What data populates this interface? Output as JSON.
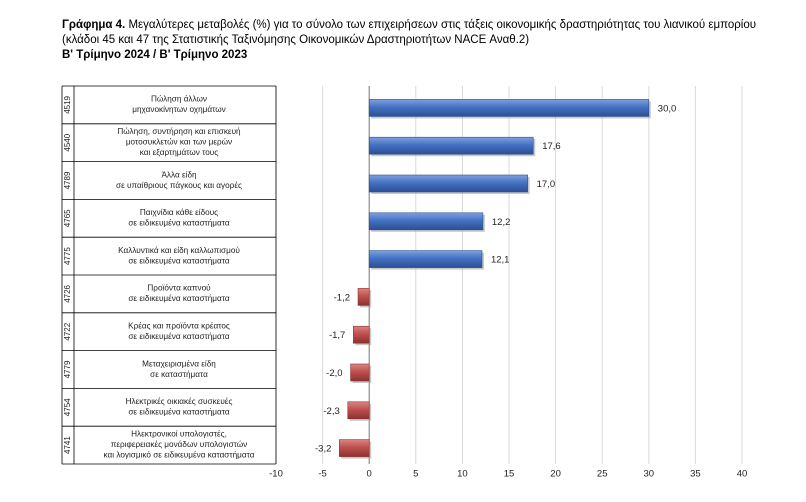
{
  "header": {
    "lead": "Γράφημα 4.",
    "title": " Μεγαλύτερες μεταβολές (%) για το σύνολο των επιχειρήσεων στις τάξεις οικονομικής δραστηριότητας του λιανικού εμπορίου (κλάδοι 45 και 47 της Στατιστικής Ταξινόμησης Οικονομικών Δραστηριοτήτων NACE Αναθ.2)",
    "period": "Β' Τρίμηνο 2024 / Β' Τρίμηνο 2023"
  },
  "colors": {
    "positive": "#4472c4",
    "negative": "#c0504d",
    "grid": "#d9d9d9",
    "axis": "#7f7f7f"
  },
  "chart_data": {
    "type": "bar",
    "orientation": "horizontal",
    "title": "Β' Τρίμηνο 2024 / Β' Τρίμηνο 2023",
    "xlim": [
      -10,
      40
    ],
    "xticks": [
      -10,
      -5,
      0,
      5,
      10,
      15,
      20,
      25,
      30,
      35,
      40
    ],
    "grid": true,
    "legend": "none",
    "categories": [
      {
        "code": "4519",
        "lines": [
          "Πώληση άλλων",
          "μηχανοκίνητων οχημάτων"
        ]
      },
      {
        "code": "4540",
        "lines": [
          "Πώληση, συντήρηση και επισκευή",
          "μοτοσυκλετών και των μερών",
          "και εξαρτημάτων τους"
        ]
      },
      {
        "code": "4789",
        "lines": [
          "Άλλα είδη",
          "σε υπαίθριους πάγκους και αγορές"
        ]
      },
      {
        "code": "4765",
        "lines": [
          "Παιχνίδια κάθε είδους",
          "σε ειδικευμένα καταστήματα"
        ]
      },
      {
        "code": "4775",
        "lines": [
          "Καλλυντικά και είδη καλλωπισμού",
          "σε ειδικευμένα καταστήματα"
        ]
      },
      {
        "code": "4726",
        "lines": [
          "Προϊόντα καπνού",
          "σε ειδικευμένα καταστήματα"
        ]
      },
      {
        "code": "4722",
        "lines": [
          "Κρέας και προϊόντα κρέατος",
          "σε ειδικευμένα καταστήματα"
        ]
      },
      {
        "code": "4779",
        "lines": [
          "Μεταχειρισμένα είδη",
          "σε καταστήματα"
        ]
      },
      {
        "code": "4754",
        "lines": [
          "Ηλεκτρικές οικιακές συσκευές",
          "σε ειδικευμένα καταστήματα"
        ]
      },
      {
        "code": "4741",
        "lines": [
          "Ηλεκτρονικοί υπολογιστές,",
          "περιφερειακές μονάδων υπολογιστών",
          "και λογισμικό σε ειδικευμένα καταστήματα"
        ]
      }
    ],
    "values": [
      30.0,
      17.6,
      17.0,
      12.2,
      12.1,
      -1.2,
      -1.7,
      -2.0,
      -2.3,
      -3.2
    ],
    "value_labels": [
      "30,0",
      "17,6",
      "17,0",
      "12,2",
      "12,1",
      "-1,2",
      "-1,7",
      "-2,0",
      "-2,3",
      "-3,2"
    ]
  }
}
